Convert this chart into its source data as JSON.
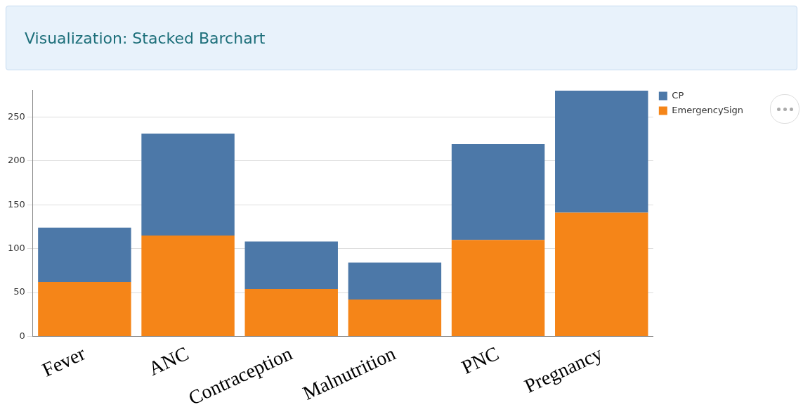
{
  "chart_data": {
    "type": "bar",
    "title": "Visualization: Stacked Barchart",
    "categories": [
      "Fever",
      "ANC",
      "Contraception",
      "Malnutrition",
      "PNC",
      "Pregnancy"
    ],
    "series": [
      {
        "name": "EmergencySign",
        "color": "#f58518",
        "values": [
          62,
          115,
          54,
          42,
          110,
          141
        ]
      },
      {
        "name": "CP",
        "color": "#4c78a8",
        "values": [
          62,
          116,
          54,
          42,
          109,
          139
        ]
      }
    ],
    "stacked": true,
    "ylim": [
      0,
      280
    ],
    "yticks": [
      0,
      50,
      100,
      150,
      200,
      250
    ],
    "grid": "y",
    "legend": "top right"
  }
}
